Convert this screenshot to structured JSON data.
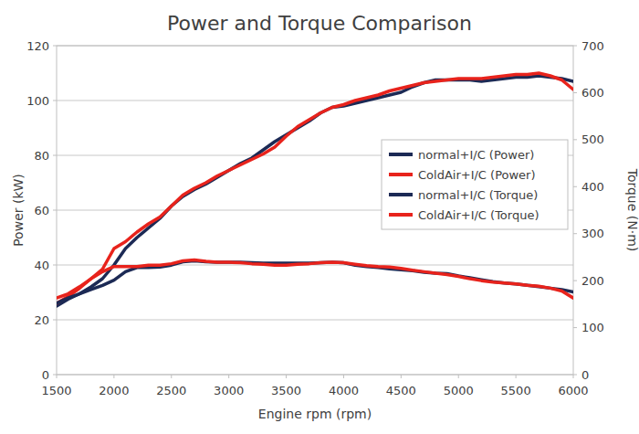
{
  "chart_data": {
    "type": "line",
    "title": "Power and Torque Comparison",
    "x_label": "Engine rpm (rpm)",
    "y_label": "Power (kW)",
    "y2_label": "Torque (N·m)",
    "x": [
      1500,
      1600,
      1700,
      1800,
      1900,
      2000,
      2100,
      2200,
      2300,
      2400,
      2500,
      2600,
      2700,
      2800,
      2900,
      3000,
      3100,
      3200,
      3300,
      3400,
      3500,
      3600,
      3700,
      3800,
      3900,
      4000,
      4100,
      4200,
      4300,
      4400,
      4500,
      4600,
      4700,
      4800,
      4900,
      5000,
      5100,
      5200,
      5300,
      5400,
      5500,
      5600,
      5700,
      5800,
      5900,
      6000
    ],
    "xlim": [
      1500,
      6000
    ],
    "xticks": [
      1500,
      2000,
      2500,
      3000,
      3500,
      4000,
      4500,
      5000,
      5500,
      6000
    ],
    "ylim": [
      0,
      120
    ],
    "yticks": [
      0,
      20,
      40,
      60,
      80,
      100,
      120
    ],
    "y2lim": [
      0,
      700
    ],
    "y2ticks": [
      0,
      100,
      200,
      300,
      400,
      500,
      600,
      700
    ],
    "grid": true,
    "legend": "right",
    "series": [
      {
        "name": "normal+I/C (Power)",
        "color": "#1c2a55",
        "values": [
          25,
          27.5,
          29.5,
          32,
          35,
          40,
          46,
          50,
          53.5,
          57,
          61.5,
          65,
          67.5,
          69.5,
          72,
          74.5,
          77,
          79,
          82,
          85,
          87.5,
          90,
          92.5,
          95.5,
          97.5,
          98,
          99,
          100,
          101,
          102,
          103,
          105,
          106.5,
          107.5,
          107.5,
          107.5,
          107.5,
          107,
          107.5,
          108,
          108.5,
          108.5,
          109,
          108.5,
          108,
          107
        ]
      },
      {
        "name": "ColdAir+I/C (Power)",
        "color": "#e8231c",
        "values": [
          26,
          28.5,
          31.5,
          35,
          38.5,
          46,
          48.5,
          52,
          55,
          57.5,
          61.5,
          65.5,
          68,
          70,
          72.5,
          74.5,
          76.5,
          78.5,
          80.5,
          83,
          87,
          90.5,
          93,
          95.5,
          97.5,
          98.5,
          100,
          101,
          102,
          103.5,
          104.5,
          105.5,
          106.5,
          107,
          107.5,
          108,
          108,
          108,
          108.5,
          109,
          109.5,
          109.5,
          110,
          109,
          107.5,
          104
        ]
      },
      {
        "name": "normal+I/C (Torque)",
        "color": "#1c2a55",
        "axis": "y2",
        "values": [
          152,
          163,
          172,
          181,
          190,
          201,
          219,
          228,
          228,
          229,
          233,
          240,
          242,
          240,
          239,
          239,
          239,
          238,
          237,
          237,
          237,
          237,
          237,
          238,
          239,
          238,
          233,
          230,
          228,
          225,
          223,
          221,
          218,
          216,
          215,
          210,
          206,
          202,
          198,
          195,
          193,
          190,
          187,
          184,
          181,
          176
        ]
      },
      {
        "name": "ColdAir+I/C (Torque)",
        "color": "#e8231c",
        "axis": "y2",
        "values": [
          163,
          172,
          187,
          204,
          219,
          230,
          230,
          230,
          233,
          233,
          236,
          242,
          244,
          241,
          239,
          239,
          238,
          236,
          235,
          233,
          233,
          235,
          236,
          238,
          239,
          238,
          235,
          232,
          230,
          229,
          226,
          222,
          219,
          216,
          213,
          209,
          204,
          200,
          197,
          195,
          193,
          190,
          188,
          184,
          178,
          163
        ]
      }
    ]
  }
}
